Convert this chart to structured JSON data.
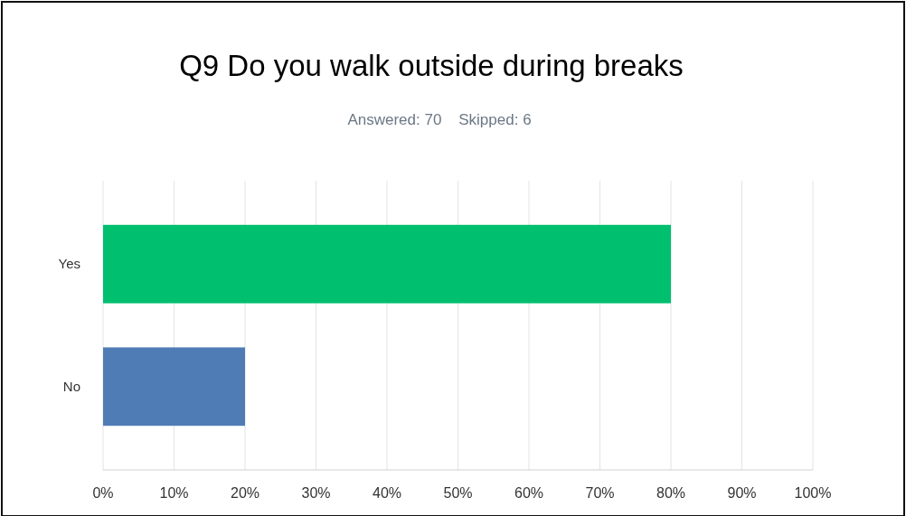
{
  "chart_data": {
    "type": "bar",
    "orientation": "horizontal",
    "title": "Q9 Do you walk outside during breaks",
    "subtitle": "Answered: 70    Skipped: 6",
    "categories": [
      "Yes",
      "No"
    ],
    "values": [
      80,
      20
    ],
    "colors": [
      "#00bf6f",
      "#507cb6"
    ],
    "xlim": [
      0,
      100
    ],
    "xticks": [
      {
        "value": 0,
        "label": "0%"
      },
      {
        "value": 10,
        "label": "10%"
      },
      {
        "value": 20,
        "label": "20%"
      },
      {
        "value": 30,
        "label": "30%"
      },
      {
        "value": 40,
        "label": "40%"
      },
      {
        "value": 50,
        "label": "50%"
      },
      {
        "value": 60,
        "label": "60%"
      },
      {
        "value": 70,
        "label": "70%"
      },
      {
        "value": 80,
        "label": "80%"
      },
      {
        "value": 90,
        "label": "90%"
      },
      {
        "value": 100,
        "label": "100%"
      }
    ],
    "grid": "x"
  }
}
